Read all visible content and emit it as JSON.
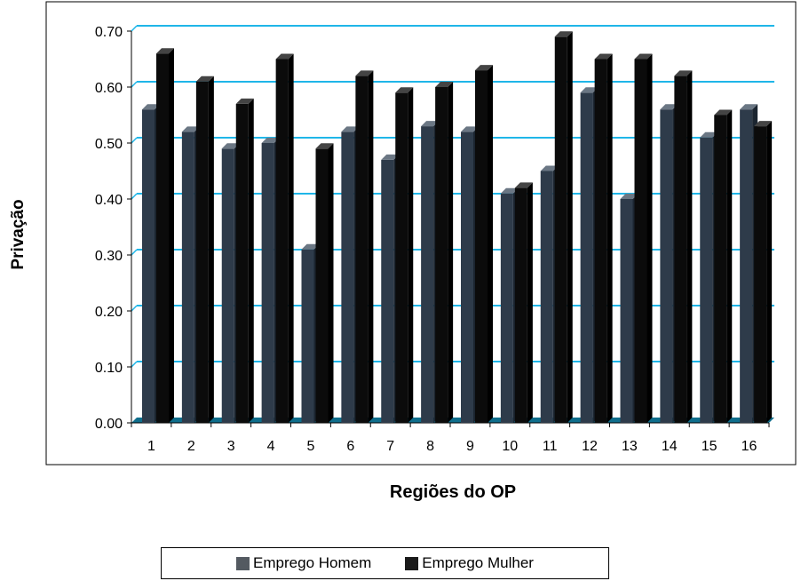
{
  "chart_data": {
    "type": "bar",
    "xlabel": "Regiões do OP",
    "ylabel": "Privação",
    "ylim": [
      0,
      0.7
    ],
    "yticks": [
      "0.00",
      "0.10",
      "0.20",
      "0.30",
      "0.40",
      "0.50",
      "0.60",
      "0.70"
    ],
    "categories": [
      "1",
      "2",
      "3",
      "4",
      "5",
      "6",
      "7",
      "8",
      "9",
      "10",
      "11",
      "12",
      "13",
      "14",
      "15",
      "16"
    ],
    "series": [
      {
        "name": "Emprego Homem",
        "color": "#2e3b4a",
        "values": [
          0.56,
          0.52,
          0.49,
          0.5,
          0.31,
          0.52,
          0.47,
          0.53,
          0.52,
          0.41,
          0.45,
          0.59,
          0.4,
          0.56,
          0.51,
          0.56
        ]
      },
      {
        "name": "Emprego Mulher",
        "color": "#0b0b0b",
        "values": [
          0.66,
          0.61,
          0.57,
          0.65,
          0.49,
          0.62,
          0.59,
          0.6,
          0.63,
          0.42,
          0.69,
          0.65,
          0.65,
          0.62,
          0.55,
          0.53
        ]
      }
    ],
    "grid": true,
    "gridline_color": "#1fb6e8",
    "legend_position": "bottom"
  }
}
